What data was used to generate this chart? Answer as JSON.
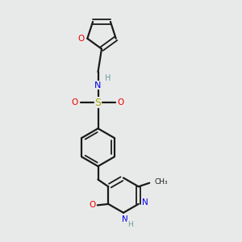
{
  "bg_color": "#e8eaea",
  "bond_color": "#1a1a1a",
  "N_color": "#0000ee",
  "O_color": "#ee0000",
  "S_color": "#aaaa00",
  "H_color": "#6a9a9a",
  "figsize": [
    3.0,
    3.0
  ],
  "dpi": 100,
  "xlim": [
    0,
    10
  ],
  "ylim": [
    0,
    10
  ]
}
